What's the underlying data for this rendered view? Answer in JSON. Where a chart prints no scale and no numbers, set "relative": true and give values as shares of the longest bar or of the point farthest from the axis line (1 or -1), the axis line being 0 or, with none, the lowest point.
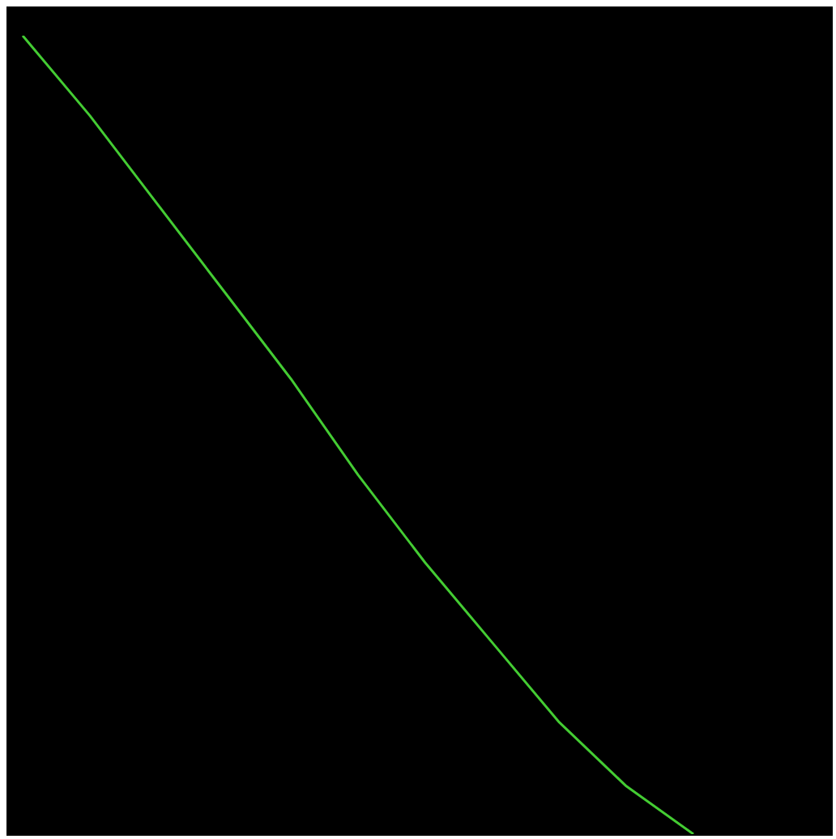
{
  "chart_data": {
    "type": "line",
    "relative": true,
    "categories": [
      null,
      null,
      null,
      null,
      null,
      null,
      null,
      null,
      null,
      null,
      null
    ],
    "marker": "none",
    "line_style": "solid",
    "grid": false,
    "legend": false,
    "series": [
      {
        "color": "#44cc33",
        "values": [
          1,
          0.9,
          0.79,
          0.68,
          0.57,
          0.45,
          0.34,
          0.24,
          0.14,
          0.06,
          0
        ]
      }
    ]
  }
}
